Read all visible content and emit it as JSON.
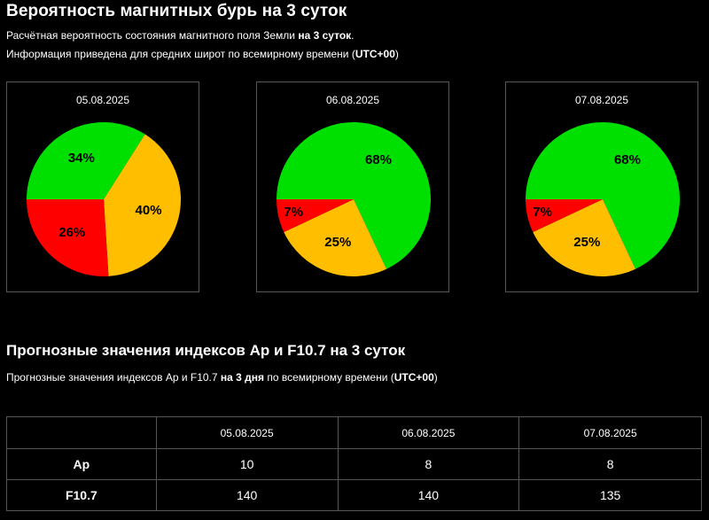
{
  "header": {
    "title": "Вероятность магнитных бурь на 3 суток",
    "line1_pre": "Расчётная вероятность состояния магнитного поля Земли ",
    "line1_bold": "на 3 суток",
    "line1_post": ".",
    "line2_pre": "Информация приведена для средних широт по всемирному времени (",
    "line2_bold": "UTC+00",
    "line2_post": ")"
  },
  "colors": {
    "green": "#00e000",
    "orange": "#ffbf00",
    "red": "#ff0000"
  },
  "chart_data": [
    {
      "type": "pie",
      "title": "05.08.2025",
      "slices": [
        {
          "label": "34%",
          "value": 34,
          "color": "#00e000"
        },
        {
          "label": "40%",
          "value": 40,
          "color": "#ffbf00"
        },
        {
          "label": "26%",
          "value": 26,
          "color": "#ff0000"
        }
      ]
    },
    {
      "type": "pie",
      "title": "06.08.2025",
      "slices": [
        {
          "label": "68%",
          "value": 68,
          "color": "#00e000"
        },
        {
          "label": "25%",
          "value": 25,
          "color": "#ffbf00"
        },
        {
          "label": "7%",
          "value": 7,
          "color": "#ff0000"
        }
      ]
    },
    {
      "type": "pie",
      "title": "07.08.2025",
      "slices": [
        {
          "label": "68%",
          "value": 68,
          "color": "#00e000"
        },
        {
          "label": "25%",
          "value": 25,
          "color": "#ffbf00"
        },
        {
          "label": "7%",
          "value": 7,
          "color": "#ff0000"
        }
      ]
    }
  ],
  "forecast": {
    "title": "Прогнозные значения индексов Ap и F10.7 на 3 суток",
    "line_pre": "Прогнозные значения индексов Ap и F10.7 ",
    "line_bold1": "на 3 дня",
    "line_mid": " по всемирному времени (",
    "line_bold2": "UTC+00",
    "line_post": ")",
    "table": {
      "dates": [
        "05.08.2025",
        "06.08.2025",
        "07.08.2025"
      ],
      "rows": [
        {
          "name": "Ap",
          "values": [
            "10",
            "8",
            "8"
          ]
        },
        {
          "name": "F10.7",
          "values": [
            "140",
            "140",
            "135"
          ]
        }
      ]
    }
  }
}
